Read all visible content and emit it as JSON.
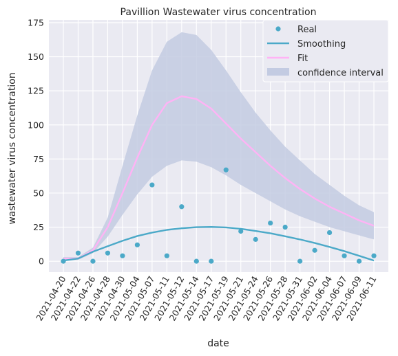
{
  "chart_data": {
    "type": "line",
    "title": "Pavillion Wastewater virus concentration",
    "xlabel": "date",
    "ylabel": "wastewater virus concentration",
    "ylim": [
      -8,
      177
    ],
    "yticks": [
      0,
      25,
      50,
      75,
      100,
      125,
      150,
      175
    ],
    "x": [
      "2021-04-20",
      "2021-04-22",
      "2021-04-26",
      "2021-04-28",
      "2021-04-30",
      "2021-05-04",
      "2021-05-07",
      "2021-05-11",
      "2021-05-12",
      "2021-05-14",
      "2021-05-17",
      "2021-05-19",
      "2021-05-21",
      "2021-05-24",
      "2021-05-26",
      "2021-05-28",
      "2021-05-31",
      "2021-06-02",
      "2021-06-04",
      "2021-06-07",
      "2021-06-09",
      "2021-06-11"
    ],
    "grid": true,
    "legend_position": "top-right",
    "colors": {
      "background": "#eaeaf2",
      "real": "#4ba9c8",
      "smoothing": "#4ba9c8",
      "fit": "#ffb3f5",
      "ci": "#c3cbe2"
    },
    "series": [
      {
        "name": "Real",
        "kind": "scatter",
        "values": [
          0,
          6,
          0,
          6,
          4,
          12,
          56,
          4,
          40,
          0,
          0,
          67,
          22,
          16,
          28,
          25,
          0,
          8,
          21,
          4,
          0,
          4
        ]
      },
      {
        "name": "Smoothing",
        "kind": "line",
        "values": [
          0.5,
          2,
          7,
          11,
          15,
          18.5,
          21,
          23,
          24.2,
          25,
          25.2,
          24.8,
          23.8,
          22.2,
          20.5,
          18.3,
          16,
          13.4,
          10.5,
          7.4,
          4,
          0.5
        ]
      },
      {
        "name": "Fit",
        "kind": "line",
        "values": [
          2,
          2,
          8,
          25,
          50,
          76,
          100,
          116,
          121,
          119,
          112,
          101,
          90,
          80,
          70,
          61,
          53,
          46,
          40,
          35,
          30,
          26
        ]
      },
      {
        "name": "confidence interval",
        "kind": "band",
        "lower": [
          1,
          1,
          6,
          18,
          34,
          49,
          62,
          70,
          74,
          73,
          69,
          63,
          56,
          50,
          44,
          38,
          33,
          29,
          25,
          22,
          19,
          16
        ],
        "upper": [
          3,
          3,
          10,
          32,
          70,
          107,
          140,
          161,
          168,
          166,
          155,
          140,
          124,
          109,
          96,
          84,
          74,
          64,
          56,
          48,
          41,
          36
        ]
      }
    ]
  }
}
